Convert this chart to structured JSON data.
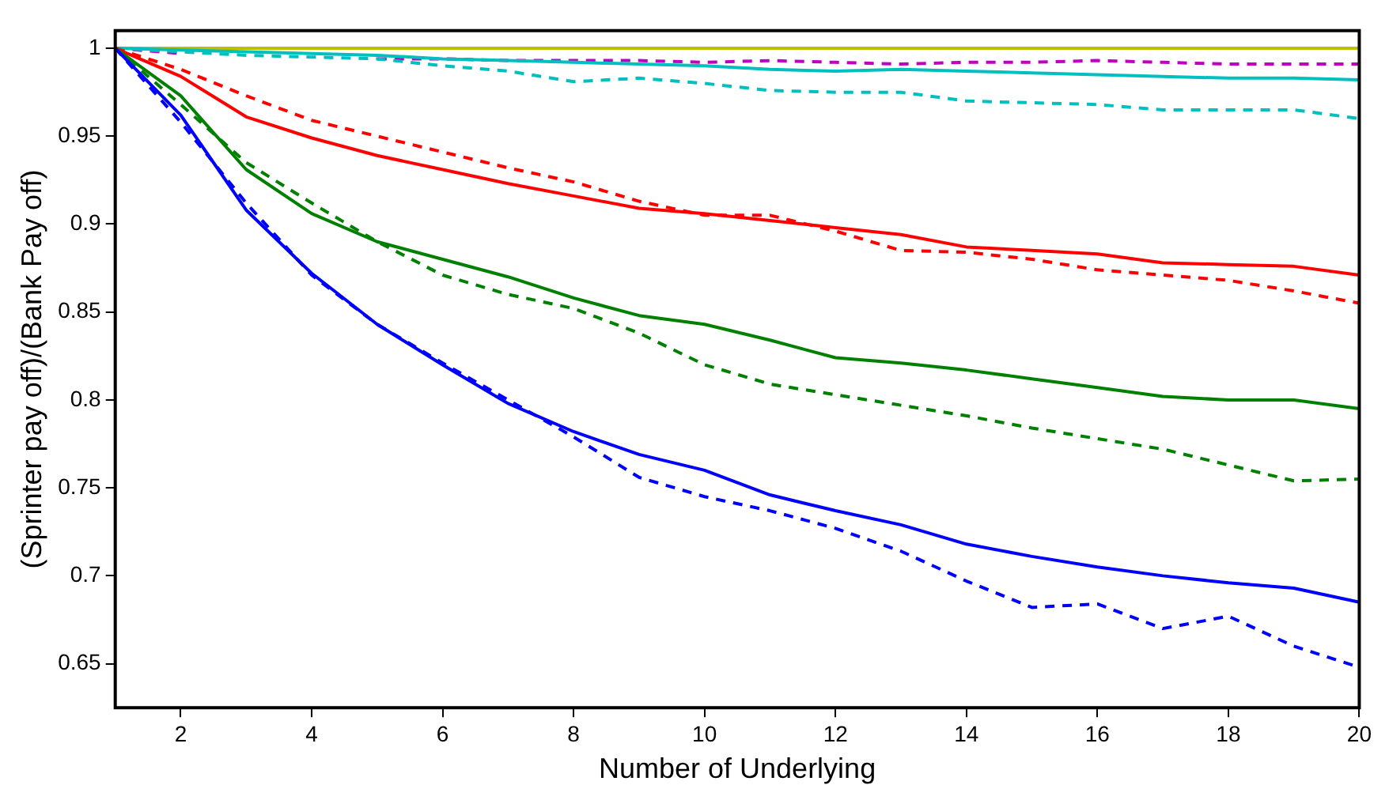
{
  "chart_data": {
    "type": "line",
    "xlabel": "Number of Underlying",
    "ylabel": "(Sprinter pay off)/(Bank Pay off)",
    "x": [
      1,
      2,
      3,
      4,
      5,
      6,
      7,
      8,
      9,
      10,
      11,
      12,
      13,
      14,
      15,
      16,
      17,
      18,
      19,
      20
    ],
    "xlim": [
      1,
      20
    ],
    "xticks": [
      2,
      4,
      6,
      8,
      10,
      12,
      14,
      16,
      18,
      20
    ],
    "ylim": [
      0.625,
      1.01
    ],
    "yticks": [
      0.65,
      0.7,
      0.75,
      0.8,
      0.85,
      0.9,
      0.95,
      1
    ],
    "grid": false,
    "legend": false,
    "marker": "none",
    "series": [
      {
        "color": "#0000ff",
        "line_style": "solid",
        "values": [
          1,
          0.962,
          0.908,
          0.872,
          0.843,
          0.82,
          0.798,
          0.782,
          0.769,
          0.76,
          0.746,
          0.737,
          0.729,
          0.718,
          0.711,
          0.705,
          0.7,
          0.696,
          0.693,
          0.685
        ]
      },
      {
        "color": "#0000ff",
        "line_style": "dashed",
        "values": [
          1,
          0.958,
          0.912,
          0.871,
          0.843,
          0.821,
          0.8,
          0.779,
          0.756,
          0.745,
          0.737,
          0.727,
          0.714,
          0.697,
          0.682,
          0.684,
          0.67,
          0.677,
          0.66,
          0.648
        ]
      },
      {
        "color": "#008000",
        "line_style": "solid",
        "values": [
          1,
          0.973,
          0.931,
          0.906,
          0.89,
          0.88,
          0.87,
          0.858,
          0.848,
          0.843,
          0.834,
          0.824,
          0.821,
          0.817,
          0.812,
          0.807,
          0.802,
          0.8,
          0.8,
          0.795
        ]
      },
      {
        "color": "#008000",
        "line_style": "dashed",
        "values": [
          1,
          0.968,
          0.935,
          0.912,
          0.89,
          0.871,
          0.86,
          0.852,
          0.838,
          0.82,
          0.809,
          0.803,
          0.797,
          0.791,
          0.784,
          0.778,
          0.772,
          0.763,
          0.754,
          0.755
        ]
      },
      {
        "color": "#ff0000",
        "line_style": "solid",
        "values": [
          1,
          0.984,
          0.961,
          0.949,
          0.939,
          0.931,
          0.923,
          0.916,
          0.909,
          0.906,
          0.902,
          0.898,
          0.894,
          0.887,
          0.885,
          0.883,
          0.878,
          0.877,
          0.876,
          0.871
        ]
      },
      {
        "color": "#ff0000",
        "line_style": "dashed",
        "values": [
          1,
          0.988,
          0.973,
          0.959,
          0.95,
          0.941,
          0.932,
          0.924,
          0.913,
          0.905,
          0.905,
          0.896,
          0.885,
          0.884,
          0.88,
          0.874,
          0.871,
          0.868,
          0.862,
          0.855
        ]
      },
      {
        "color": "#00bfbf",
        "line_style": "solid",
        "values": [
          1,
          0.999,
          0.998,
          0.997,
          0.996,
          0.994,
          0.993,
          0.992,
          0.991,
          0.99,
          0.988,
          0.987,
          0.988,
          0.987,
          0.986,
          0.985,
          0.984,
          0.983,
          0.983,
          0.982
        ]
      },
      {
        "color": "#00bfbf",
        "line_style": "dashed",
        "values": [
          1,
          0.998,
          0.996,
          0.995,
          0.994,
          0.99,
          0.987,
          0.981,
          0.983,
          0.98,
          0.976,
          0.975,
          0.975,
          0.97,
          0.969,
          0.968,
          0.965,
          0.965,
          0.965,
          0.96
        ]
      },
      {
        "color": "#bf00bf",
        "line_style": "dashed",
        "values": [
          1,
          0.997,
          null,
          null,
          0.994,
          0.994,
          0.993,
          0.993,
          0.993,
          0.992,
          0.993,
          0.992,
          0.991,
          0.992,
          0.992,
          0.993,
          0.992,
          0.991,
          0.991,
          0.991
        ]
      },
      {
        "color": "#bfbf00",
        "line_style": "solid",
        "values": [
          1,
          1,
          1,
          1,
          1,
          1,
          1,
          1,
          1,
          1,
          1,
          1,
          1,
          1,
          1,
          1,
          1,
          1,
          1,
          1
        ]
      }
    ]
  }
}
